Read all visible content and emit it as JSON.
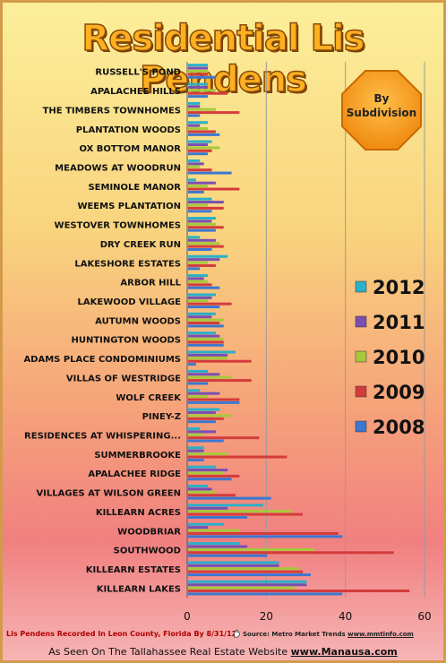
{
  "chart_data": {
    "type": "bar",
    "orientation": "horizontal",
    "title": "Residential Lis Pendens",
    "badge": "By Subdivision",
    "categories": [
      "RUSSELL'S POND",
      "APALACHEE HILLS",
      "THE TIMBERS TOWNHOMES",
      "PLANTATION WOODS",
      "OX BOTTOM MANOR",
      "MEADOWS AT WOODRUN",
      "SEMINOLE MANOR",
      "WEEMS PLANTATION",
      "WESTOVER TOWNHOMES",
      "DRY CREEK RUN",
      "LAKESHORE ESTATES",
      "ARBOR HILL",
      "LAKEWOOD VILLAGE",
      "AUTUMN WOODS",
      "HUNTINGTON WOODS",
      "ADAMS PLACE CONDOMINIUMS",
      "VILLAS OF WESTRIDGE",
      "WOLF CREEK",
      "PINEY-Z",
      "RESIDENCES AT WHISPERING...",
      "SUMMERBROOKE",
      "APALACHEE RIDGE",
      "VILLAGES AT WILSON GREEN",
      "KILLEARN ACRES",
      "WOODBRIAR",
      "SOUTHWOOD",
      "KILLEARN ESTATES",
      "KILLEARN LAKES"
    ],
    "series": [
      {
        "name": "2012",
        "color": "#2ab0c8",
        "values": [
          5,
          5,
          3,
          5,
          6,
          3,
          2,
          6,
          7,
          3,
          10,
          5,
          7,
          7,
          7,
          12,
          5,
          3,
          8,
          3,
          4,
          7,
          5,
          19,
          9,
          13,
          23,
          30
        ]
      },
      {
        "name": "2011",
        "color": "#7a4fb0",
        "values": [
          5,
          5,
          3,
          3,
          5,
          4,
          7,
          9,
          6,
          7,
          8,
          4,
          6,
          6,
          8,
          10,
          8,
          8,
          7,
          7,
          4,
          10,
          6,
          10,
          5,
          15,
          23,
          30
        ]
      },
      {
        "name": "2010",
        "color": "#a8c83c",
        "values": [
          5,
          7,
          7,
          5,
          8,
          3,
          5,
          5,
          7,
          8,
          5,
          5,
          5,
          9,
          9,
          10,
          11,
          5,
          11,
          4,
          10,
          9,
          7,
          26,
          13,
          32,
          28,
          27
        ]
      },
      {
        "name": "2009",
        "color": "#d43c3c",
        "values": [
          5,
          10,
          13,
          7,
          6,
          6,
          13,
          9,
          9,
          9,
          7,
          6,
          11,
          8,
          9,
          16,
          16,
          13,
          9,
          18,
          25,
          13,
          12,
          29,
          38,
          52,
          29,
          56
        ]
      },
      {
        "name": "2008",
        "color": "#3c78d0",
        "values": [
          7,
          5,
          3,
          8,
          5,
          11,
          4,
          6,
          7,
          6,
          3,
          8,
          8,
          9,
          9,
          2,
          5,
          13,
          7,
          9,
          4,
          11,
          21,
          15,
          39,
          20,
          31,
          39
        ]
      }
    ],
    "legend_order": [
      "2012",
      "2011",
      "2010",
      "2009",
      "2008"
    ],
    "xlim": [
      0,
      60
    ],
    "xticks": [
      0,
      20,
      40,
      60
    ],
    "xticks_text": [
      "0",
      "20",
      "40",
      "60"
    ],
    "grid": "vertical",
    "legend_placement": "right"
  },
  "footer": {
    "left": "Lis Pendens Recorded In Leon County, Florida By 8/31/12",
    "source_prefix": "Source: Metro Market Trends ",
    "source_url": "www.mmtinfo.com",
    "bottom_prefix": "As Seen On The Tallahassee Real Estate Website  ",
    "bottom_url": "www.Manausa.com"
  }
}
